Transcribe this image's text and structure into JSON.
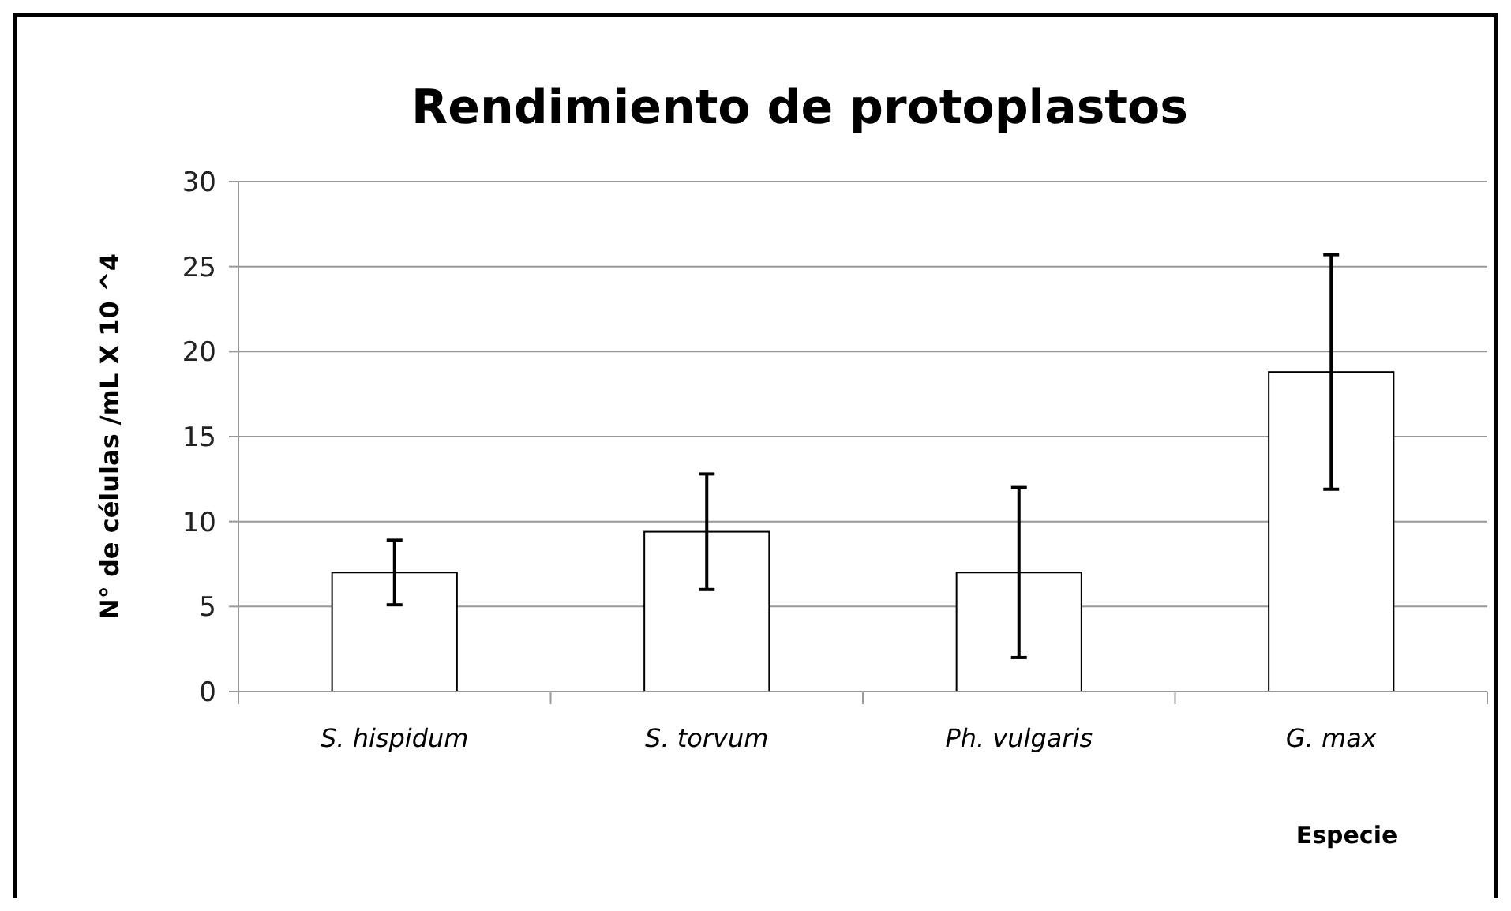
{
  "chart_data": {
    "type": "bar",
    "title": "Rendimiento de protoplastos",
    "xlabel": "Especie",
    "ylabel": "N° de células /mL X 10 ^4",
    "categories": [
      "S. hispidum",
      "S. torvum",
      "Ph. vulgaris",
      "G. max"
    ],
    "values": [
      7.0,
      9.4,
      7.0,
      18.8
    ],
    "errors": [
      1.9,
      3.4,
      5.0,
      6.9
    ],
    "color": "#ffffff",
    "ylim": [
      0,
      30
    ],
    "yticks": [
      0,
      5,
      10,
      15,
      20,
      25,
      30
    ],
    "grid": "y"
  }
}
